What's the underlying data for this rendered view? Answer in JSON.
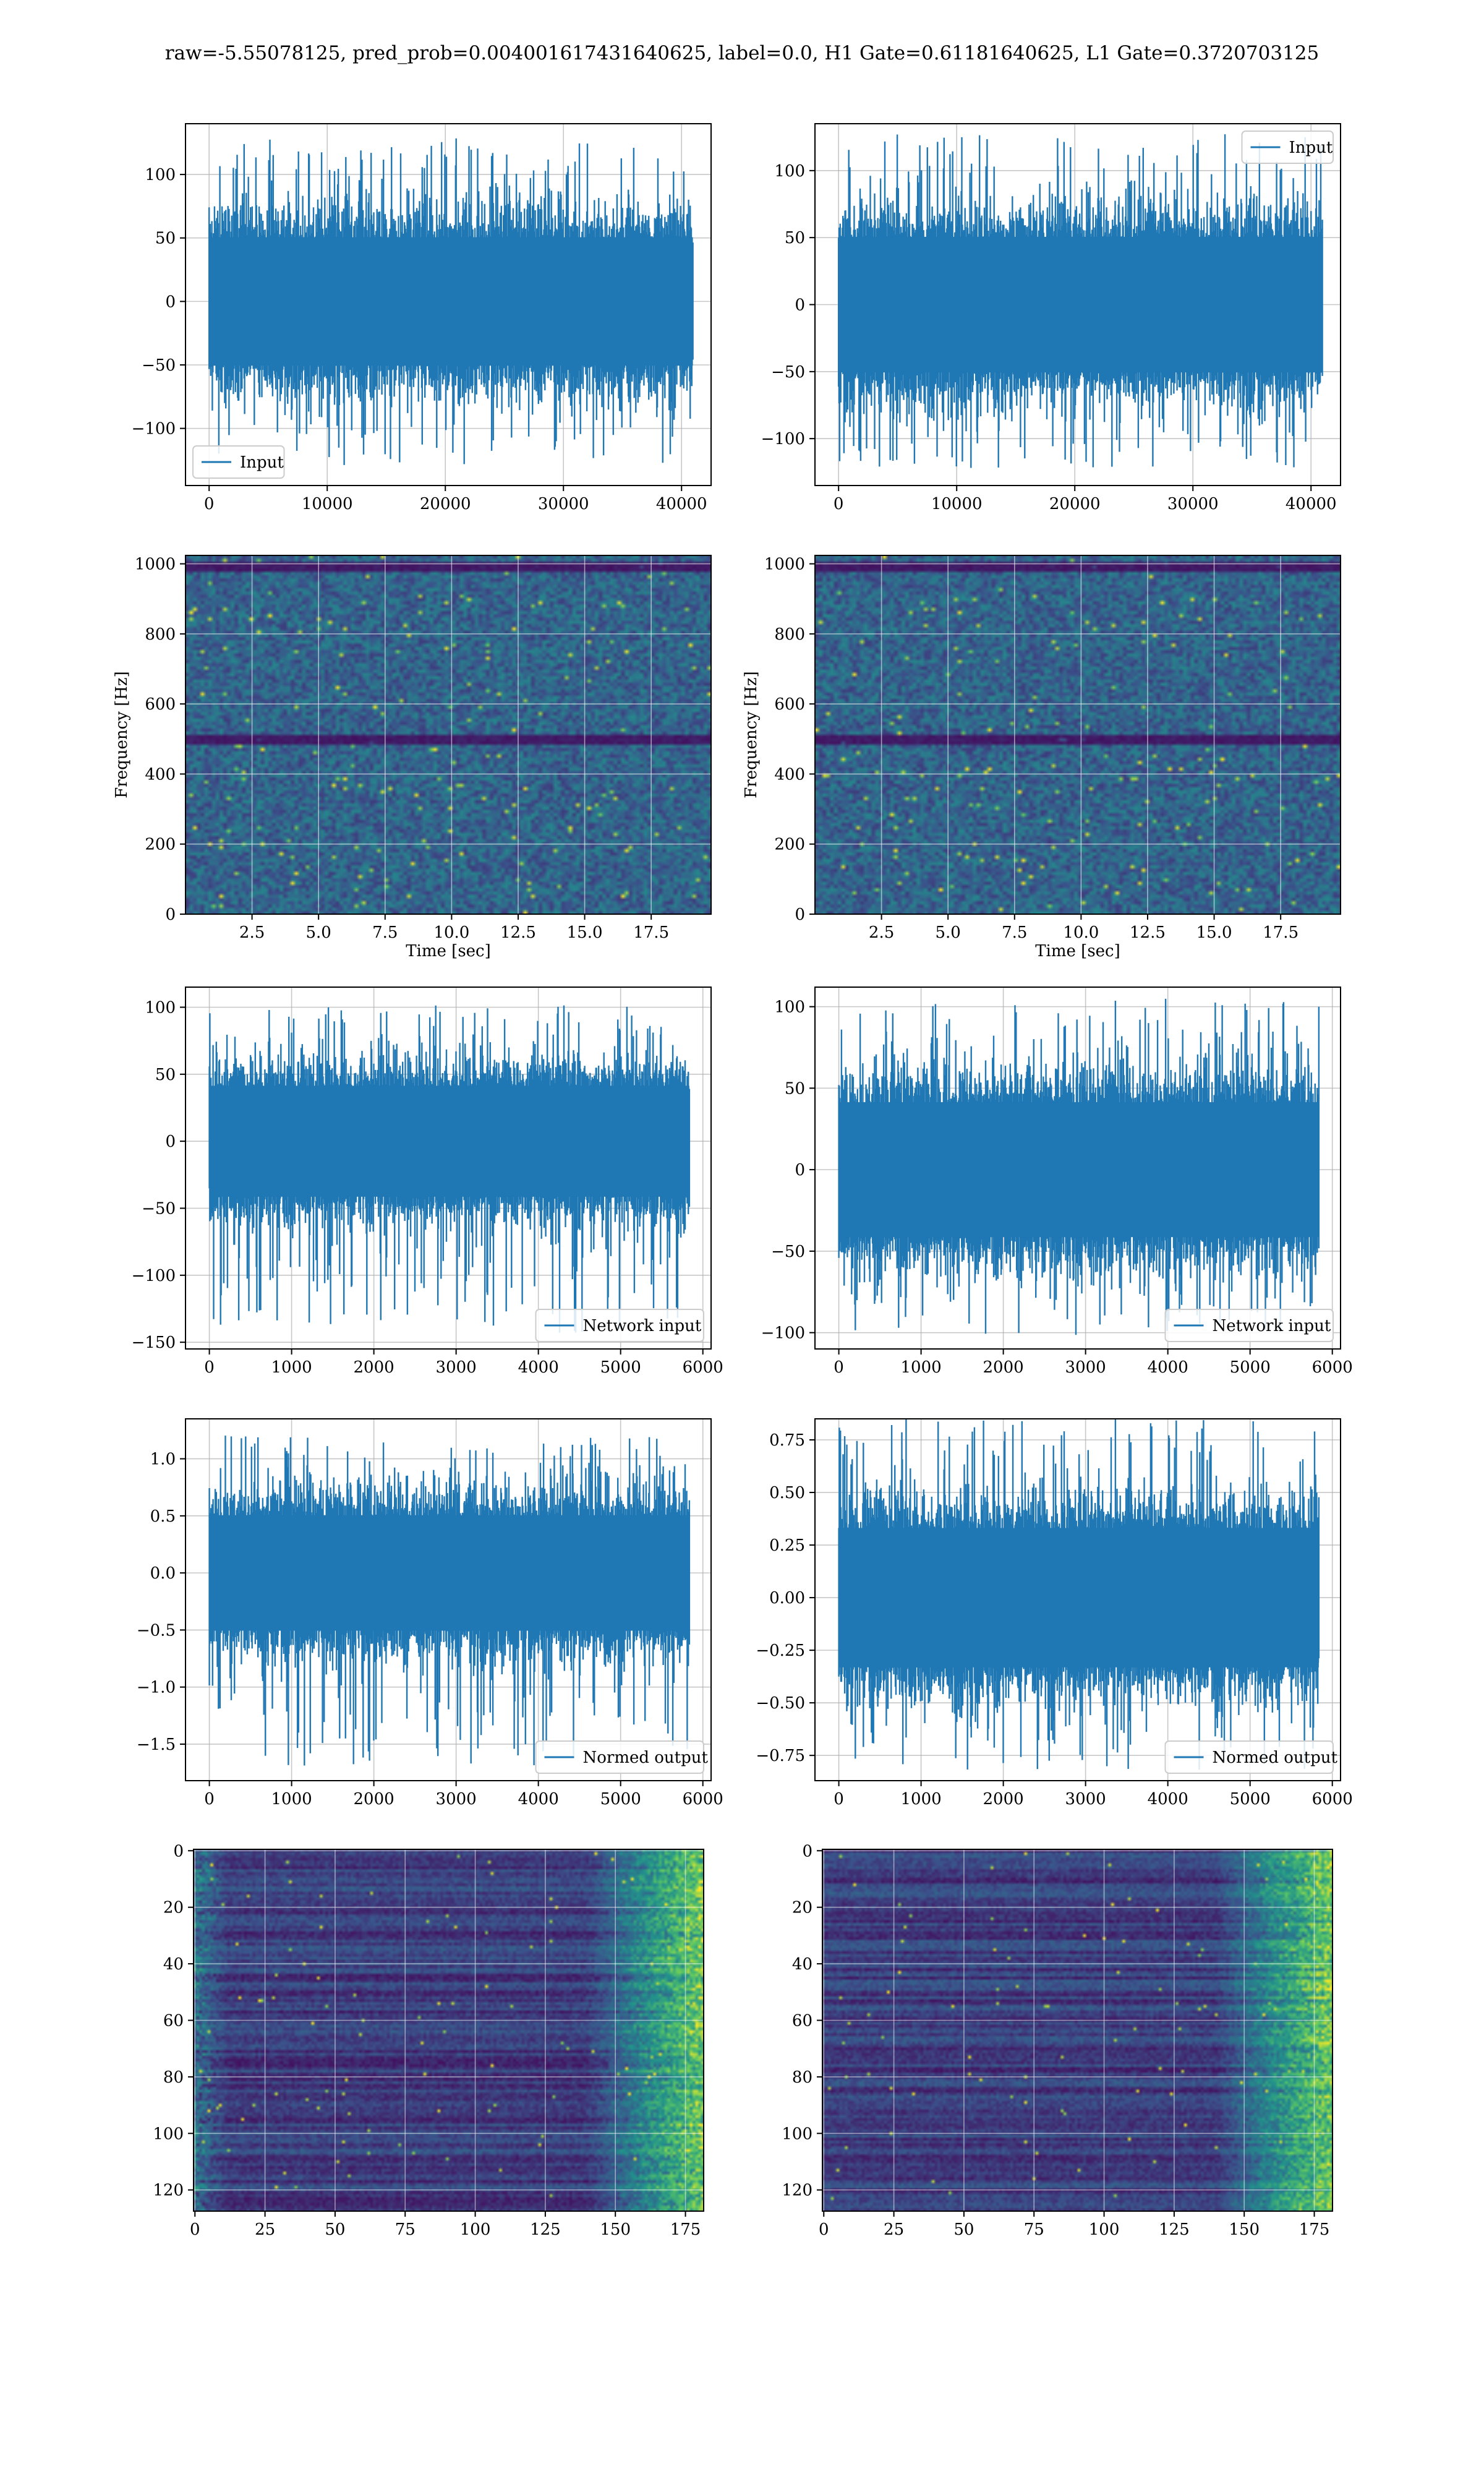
{
  "suptitle": "raw=-5.55078125, pred_prob=0.004001617431640625, label=0.0, H1 Gate=0.61181640625, L1 Gate=0.3720703125",
  "colors": {
    "line": "#1f77b4",
    "grid": "#b0b0b0",
    "viridis_low": "#440154",
    "viridis_mid": "#3b528b",
    "viridis_teal": "#21918c",
    "viridis_green": "#5ec962",
    "viridis_high": "#fde725"
  },
  "chart_data": [
    {
      "id": "input_left",
      "type": "line",
      "row": 0,
      "col": 0,
      "xlim": [
        -2000,
        42500
      ],
      "ylim": [
        -145,
        140
      ],
      "xticks": [
        0,
        10000,
        20000,
        30000,
        40000
      ],
      "xtick_labels": [
        "0",
        "10000",
        "20000",
        "30000",
        "40000"
      ],
      "yticks": [
        -100,
        -50,
        0,
        50,
        100
      ],
      "ytick_labels": [
        "−100",
        "−50",
        "0",
        "50",
        "100"
      ],
      "xlabel": "",
      "ylabel": "",
      "grid": true,
      "legend": {
        "loc": "lower left",
        "entries": [
          "Input"
        ]
      },
      "series": [
        {
          "name": "Input",
          "x_range": [
            0,
            40960
          ],
          "core_amplitude": 55,
          "max_amplitude": 130,
          "min_amplitude": -130
        }
      ]
    },
    {
      "id": "input_right",
      "type": "line",
      "row": 0,
      "col": 1,
      "xlim": [
        -2000,
        42500
      ],
      "ylim": [
        -135,
        135
      ],
      "xticks": [
        0,
        10000,
        20000,
        30000,
        40000
      ],
      "xtick_labels": [
        "0",
        "10000",
        "20000",
        "30000",
        "40000"
      ],
      "yticks": [
        -100,
        -50,
        0,
        50,
        100
      ],
      "ytick_labels": [
        "−100",
        "−50",
        "0",
        "50",
        "100"
      ],
      "xlabel": "",
      "ylabel": "",
      "grid": true,
      "legend": {
        "loc": "upper right",
        "entries": [
          "Input"
        ]
      },
      "series": [
        {
          "name": "Input",
          "x_range": [
            0,
            40960
          ],
          "core_amplitude": 55,
          "max_amplitude": 128,
          "min_amplitude": -122
        }
      ]
    },
    {
      "id": "spectrogram_left",
      "type": "heatmap",
      "row": 1,
      "col": 0,
      "xlim": [
        0,
        19.75
      ],
      "ylim": [
        0,
        1024
      ],
      "xticks": [
        2.5,
        5.0,
        7.5,
        10.0,
        12.5,
        15.0,
        17.5
      ],
      "xtick_labels": [
        "2.5",
        "5.0",
        "7.5",
        "10.0",
        "12.5",
        "15.0",
        "17.5"
      ],
      "yticks": [
        0,
        200,
        400,
        600,
        800,
        1000
      ],
      "ytick_labels": [
        "0",
        "200",
        "400",
        "600",
        "800",
        "1000"
      ],
      "xlabel": "Time [sec]",
      "ylabel": "Frequency [Hz]",
      "grid": true,
      "colormap": "viridis",
      "dark_bands_hz": [
        500,
        1000
      ]
    },
    {
      "id": "spectrogram_right",
      "type": "heatmap",
      "row": 1,
      "col": 1,
      "xlim": [
        0,
        19.75
      ],
      "ylim": [
        0,
        1024
      ],
      "xticks": [
        2.5,
        5.0,
        7.5,
        10.0,
        12.5,
        15.0,
        17.5
      ],
      "xtick_labels": [
        "2.5",
        "5.0",
        "7.5",
        "10.0",
        "12.5",
        "15.0",
        "17.5"
      ],
      "yticks": [
        0,
        200,
        400,
        600,
        800,
        1000
      ],
      "ytick_labels": [
        "0",
        "200",
        "400",
        "600",
        "800",
        "1000"
      ],
      "xlabel": "Time [sec]",
      "ylabel": "Frequency [Hz]",
      "grid": true,
      "colormap": "viridis",
      "dark_bands_hz": [
        500,
        1000
      ]
    },
    {
      "id": "network_input_left",
      "type": "line",
      "row": 2,
      "col": 0,
      "xlim": [
        -290,
        6100
      ],
      "ylim": [
        -155,
        115
      ],
      "xticks": [
        0,
        1000,
        2000,
        3000,
        4000,
        5000,
        6000
      ],
      "xtick_labels": [
        "0",
        "1000",
        "2000",
        "3000",
        "4000",
        "5000",
        "6000"
      ],
      "yticks": [
        -150,
        -100,
        -50,
        0,
        50,
        100
      ],
      "ytick_labels": [
        "−150",
        "−100",
        "−50",
        "0",
        "50",
        "100"
      ],
      "xlabel": "",
      "ylabel": "",
      "grid": true,
      "legend": {
        "loc": "lower right",
        "entries": [
          "Network input"
        ]
      },
      "series": [
        {
          "name": "Network input",
          "x_range": [
            0,
            5836
          ],
          "core_amplitude": 45,
          "max_amplitude": 102,
          "min_amplitude": -143
        }
      ]
    },
    {
      "id": "network_input_right",
      "type": "line",
      "row": 2,
      "col": 1,
      "xlim": [
        -290,
        6100
      ],
      "ylim": [
        -110,
        112
      ],
      "xticks": [
        0,
        1000,
        2000,
        3000,
        4000,
        5000,
        6000
      ],
      "xtick_labels": [
        "0",
        "1000",
        "2000",
        "3000",
        "4000",
        "5000",
        "6000"
      ],
      "yticks": [
        -100,
        -50,
        0,
        50,
        100
      ],
      "ytick_labels": [
        "−100",
        "−50",
        "0",
        "50",
        "100"
      ],
      "xlabel": "",
      "ylabel": "",
      "grid": true,
      "legend": {
        "loc": "lower right",
        "entries": [
          "Network input"
        ]
      },
      "series": [
        {
          "name": "Network input",
          "x_range": [
            0,
            5836
          ],
          "core_amplitude": 45,
          "max_amplitude": 105,
          "min_amplitude": -102
        }
      ]
    },
    {
      "id": "normed_output_left",
      "type": "line",
      "row": 3,
      "col": 0,
      "xlim": [
        -290,
        6100
      ],
      "ylim": [
        -1.82,
        1.35
      ],
      "xticks": [
        0,
        1000,
        2000,
        3000,
        4000,
        5000,
        6000
      ],
      "xtick_labels": [
        "0",
        "1000",
        "2000",
        "3000",
        "4000",
        "5000",
        "6000"
      ],
      "yticks": [
        -1.5,
        -1.0,
        -0.5,
        0.0,
        0.5,
        1.0
      ],
      "ytick_labels": [
        "−1.5",
        "−1.0",
        "−0.5",
        "0.0",
        "0.5",
        "1.0"
      ],
      "xlabel": "",
      "ylabel": "",
      "grid": true,
      "legend": {
        "loc": "lower right",
        "entries": [
          "Normed output"
        ]
      },
      "series": [
        {
          "name": "Normed output",
          "x_range": [
            0,
            5836
          ],
          "core_amplitude": 0.55,
          "max_amplitude": 1.22,
          "min_amplitude": -1.7
        }
      ]
    },
    {
      "id": "normed_output_right",
      "type": "line",
      "row": 3,
      "col": 1,
      "xlim": [
        -290,
        6100
      ],
      "ylim": [
        -0.87,
        0.85
      ],
      "xticks": [
        0,
        1000,
        2000,
        3000,
        4000,
        5000,
        6000
      ],
      "xtick_labels": [
        "0",
        "1000",
        "2000",
        "3000",
        "4000",
        "5000",
        "6000"
      ],
      "yticks": [
        -0.75,
        -0.5,
        -0.25,
        0.0,
        0.25,
        0.5,
        0.75
      ],
      "ytick_labels": [
        "−0.75",
        "−0.50",
        "−0.25",
        "0.00",
        "0.25",
        "0.50",
        "0.75"
      ],
      "xlabel": "",
      "ylabel": "",
      "grid": true,
      "legend": {
        "loc": "lower right",
        "entries": [
          "Normed output"
        ]
      },
      "series": [
        {
          "name": "Normed output",
          "x_range": [
            0,
            5836
          ],
          "core_amplitude": 0.36,
          "max_amplitude": 0.85,
          "min_amplitude": -0.82
        }
      ]
    },
    {
      "id": "activation_left",
      "type": "heatmap",
      "row": 4,
      "col": 0,
      "xlim": [
        -0.5,
        181.5
      ],
      "ylim": [
        127.5,
        -0.5
      ],
      "xticks": [
        0,
        25,
        50,
        75,
        100,
        125,
        150,
        175
      ],
      "xtick_labels": [
        "0",
        "25",
        "50",
        "75",
        "100",
        "125",
        "150",
        "175"
      ],
      "yticks": [
        0,
        20,
        40,
        60,
        80,
        100,
        120
      ],
      "ytick_labels": [
        "0",
        "20",
        "40",
        "60",
        "80",
        "100",
        "120"
      ],
      "xlabel": "",
      "ylabel": "",
      "grid": true,
      "colormap": "viridis",
      "rows": 128,
      "cols": 182
    },
    {
      "id": "activation_right",
      "type": "heatmap",
      "row": 4,
      "col": 1,
      "xlim": [
        -0.5,
        181.5
      ],
      "ylim": [
        127.5,
        -0.5
      ],
      "xticks": [
        0,
        25,
        50,
        75,
        100,
        125,
        150,
        175
      ],
      "xtick_labels": [
        "0",
        "25",
        "50",
        "75",
        "100",
        "125",
        "150",
        "175"
      ],
      "yticks": [
        0,
        20,
        40,
        60,
        80,
        100,
        120
      ],
      "ytick_labels": [
        "0",
        "20",
        "40",
        "60",
        "80",
        "100",
        "120"
      ],
      "xlabel": "",
      "ylabel": "",
      "grid": true,
      "colormap": "viridis",
      "rows": 128,
      "cols": 182
    }
  ]
}
